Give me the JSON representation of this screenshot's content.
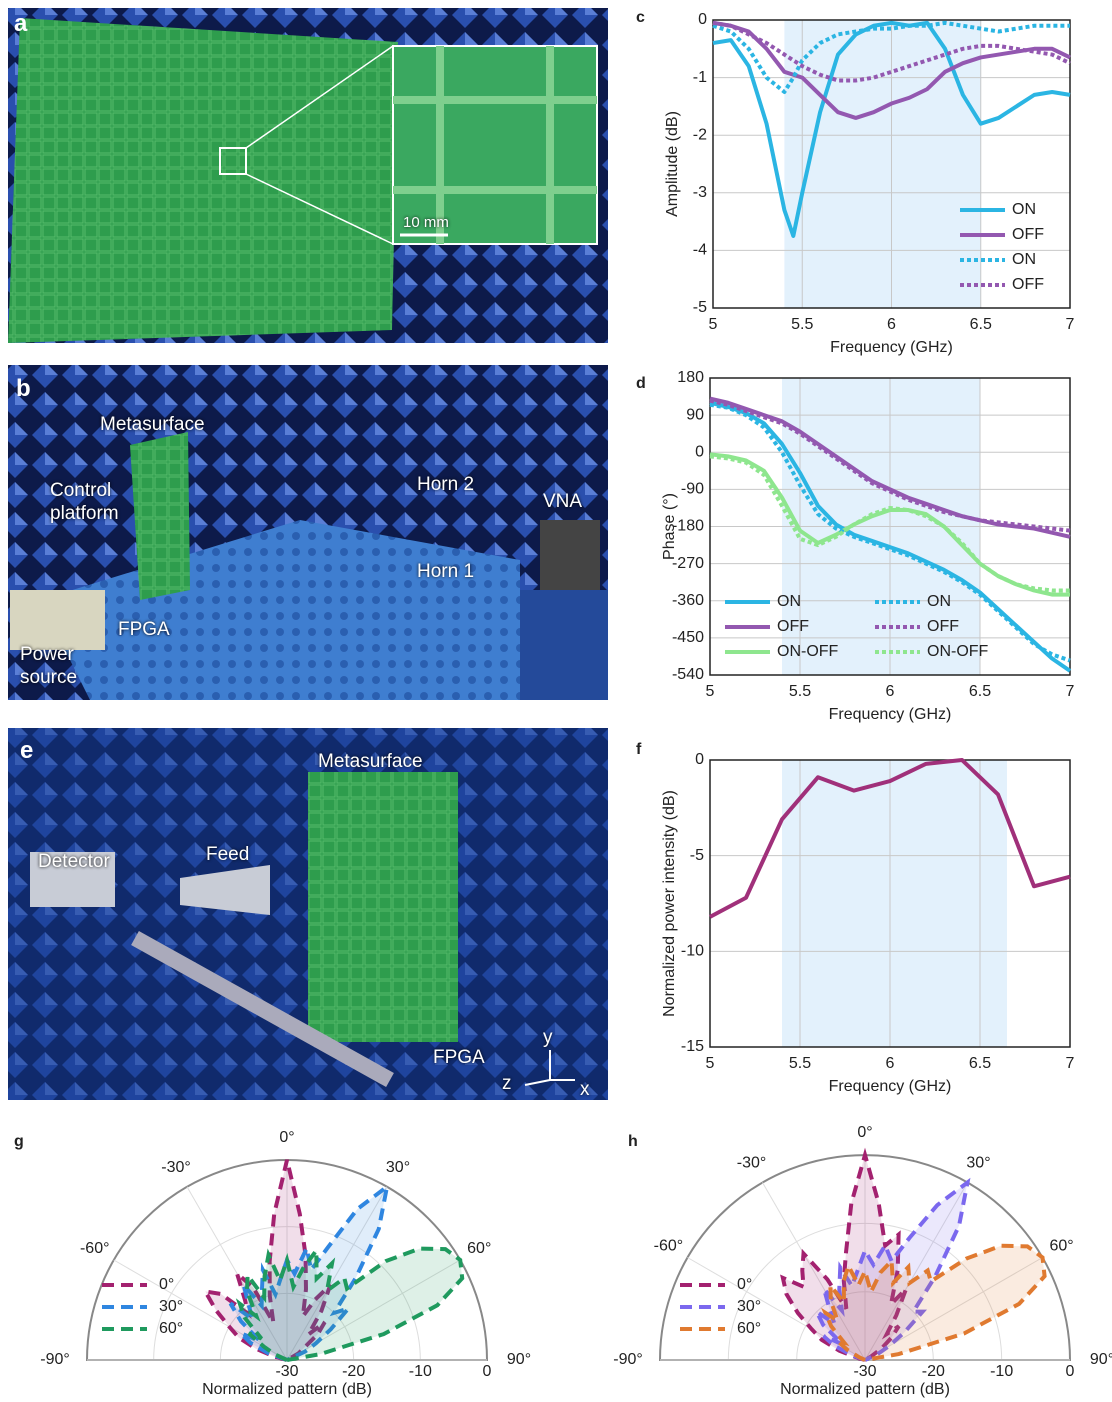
{
  "panels": {
    "a": {
      "label": "a",
      "scale_bar": "10 mm"
    },
    "b": {
      "label": "b",
      "annotations": [
        "Metasurface",
        "Control platform",
        "Horn 2",
        "VNA",
        "Horn 1",
        "FPGA",
        "Power source"
      ]
    },
    "e": {
      "label": "e",
      "annotations": [
        "Metasurface",
        "Detector",
        "Feed",
        "FPGA",
        "y",
        "z",
        "x"
      ]
    }
  },
  "chart_data": [
    {
      "type": "line",
      "panel": "c",
      "xlabel": "Frequency (GHz)",
      "ylabel": "Amplitude (dB)",
      "x": [
        5,
        5.1,
        5.2,
        5.3,
        5.4,
        5.45,
        5.5,
        5.6,
        5.7,
        5.8,
        5.9,
        6,
        6.1,
        6.2,
        6.3,
        6.4,
        6.5,
        6.6,
        6.7,
        6.8,
        6.9,
        7
      ],
      "xlim": [
        5,
        7
      ],
      "xticks": [
        5,
        5.5,
        6,
        6.5,
        7
      ],
      "ylim": [
        -5,
        0
      ],
      "yticks": [
        -5,
        -4,
        -3,
        -2,
        -1,
        0
      ],
      "grid": true,
      "shaded_region": [
        5.4,
        6.5
      ],
      "legend": "lower right",
      "legend_columns": 1,
      "series": [
        {
          "name": "ON",
          "color": "#2bb5e3",
          "dash": "solid",
          "values": [
            -0.4,
            -0.35,
            -0.8,
            -1.8,
            -3.3,
            -3.75,
            -3.0,
            -1.6,
            -0.6,
            -0.25,
            -0.1,
            -0.05,
            -0.1,
            -0.05,
            -0.5,
            -1.3,
            -1.8,
            -1.7,
            -1.5,
            -1.3,
            -1.25,
            -1.3
          ]
        },
        {
          "name": "OFF",
          "color": "#9358b0",
          "dash": "solid",
          "values": [
            -0.05,
            -0.1,
            -0.2,
            -0.5,
            -0.9,
            -0.95,
            -1.0,
            -1.3,
            -1.6,
            -1.7,
            -1.6,
            -1.45,
            -1.35,
            -1.2,
            -0.9,
            -0.75,
            -0.65,
            -0.6,
            -0.55,
            -0.5,
            -0.5,
            -0.65
          ]
        },
        {
          "name": "ON",
          "color": "#2bb5e3",
          "dash": "dotted",
          "values": [
            -0.1,
            -0.2,
            -0.5,
            -1.0,
            -1.25,
            -1.0,
            -0.7,
            -0.4,
            -0.25,
            -0.2,
            -0.15,
            -0.15,
            -0.1,
            -0.1,
            -0.05,
            -0.1,
            -0.15,
            -0.2,
            -0.15,
            -0.1,
            -0.1,
            -0.1
          ]
        },
        {
          "name": "OFF",
          "color": "#9358b0",
          "dash": "dotted",
          "values": [
            -0.05,
            -0.1,
            -0.25,
            -0.4,
            -0.6,
            -0.7,
            -0.8,
            -0.95,
            -1.05,
            -1.05,
            -1.0,
            -0.9,
            -0.8,
            -0.7,
            -0.6,
            -0.5,
            -0.45,
            -0.45,
            -0.5,
            -0.55,
            -0.6,
            -0.75
          ]
        }
      ]
    },
    {
      "type": "line",
      "panel": "d",
      "xlabel": "Frequency (GHz)",
      "ylabel": "Phase (°)",
      "x": [
        5,
        5.1,
        5.2,
        5.3,
        5.4,
        5.5,
        5.6,
        5.7,
        5.8,
        5.9,
        6,
        6.1,
        6.2,
        6.3,
        6.4,
        6.5,
        6.6,
        6.7,
        6.8,
        6.9,
        7
      ],
      "xlim": [
        5,
        7
      ],
      "xticks": [
        5,
        5.5,
        6,
        6.5,
        7
      ],
      "ylim": [
        -540,
        180
      ],
      "yticks": [
        -540,
        -450,
        -360,
        -270,
        -180,
        -90,
        0,
        90,
        180
      ],
      "grid": true,
      "shaded_region": [
        5.4,
        6.5
      ],
      "legend": "lower left",
      "legend_columns": 2,
      "series": [
        {
          "name": "ON",
          "color": "#2bb5e3",
          "dash": "solid",
          "values": [
            120,
            110,
            95,
            70,
            20,
            -50,
            -130,
            -175,
            -200,
            -215,
            -230,
            -245,
            -265,
            -285,
            -310,
            -340,
            -380,
            -420,
            -460,
            -500,
            -530
          ]
        },
        {
          "name": "OFF",
          "color": "#9358b0",
          "dash": "solid",
          "values": [
            130,
            120,
            105,
            90,
            75,
            50,
            20,
            -10,
            -40,
            -70,
            -90,
            -110,
            -125,
            -140,
            -155,
            -165,
            -175,
            -180,
            -185,
            -195,
            -205
          ]
        },
        {
          "name": "ON-OFF",
          "color": "#8ee68e",
          "dash": "solid",
          "values": [
            -5,
            -10,
            -20,
            -45,
            -110,
            -190,
            -220,
            -200,
            -175,
            -155,
            -140,
            -140,
            -150,
            -180,
            -225,
            -270,
            -300,
            -320,
            -335,
            -345,
            -345
          ]
        },
        {
          "name": "ON",
          "color": "#2bb5e3",
          "dash": "dotted",
          "values": [
            115,
            108,
            90,
            60,
            0,
            -80,
            -150,
            -185,
            -205,
            -220,
            -235,
            -250,
            -270,
            -290,
            -315,
            -345,
            -385,
            -425,
            -465,
            -490,
            -505
          ]
        },
        {
          "name": "OFF",
          "color": "#9358b0",
          "dash": "dotted",
          "values": [
            125,
            115,
            100,
            85,
            70,
            45,
            15,
            -15,
            -45,
            -75,
            -95,
            -115,
            -130,
            -145,
            -155,
            -165,
            -170,
            -175,
            -180,
            -185,
            -190
          ]
        },
        {
          "name": "ON-OFF",
          "color": "#8ee68e",
          "dash": "dotted",
          "values": [
            -10,
            -15,
            -25,
            -55,
            -130,
            -210,
            -225,
            -205,
            -175,
            -150,
            -135,
            -140,
            -155,
            -180,
            -220,
            -270,
            -300,
            -320,
            -330,
            -335,
            -335
          ]
        }
      ]
    },
    {
      "type": "line",
      "panel": "f",
      "xlabel": "Frequency (GHz)",
      "ylabel": "Normalized power intensity (dB)",
      "x": [
        5,
        5.2,
        5.4,
        5.6,
        5.8,
        6,
        6.2,
        6.4,
        6.6,
        6.8,
        7
      ],
      "xlim": [
        5,
        7
      ],
      "xticks": [
        5,
        5.5,
        6,
        6.5,
        7
      ],
      "ylim": [
        -15,
        0
      ],
      "yticks": [
        -15,
        -10,
        -5,
        0
      ],
      "grid": true,
      "shaded_region": [
        5.4,
        6.65
      ],
      "color": "#a0307a",
      "values": [
        -8.2,
        -7.2,
        -3.1,
        -0.9,
        -1.6,
        -1.1,
        -0.2,
        0,
        -1.8,
        -6.6,
        -6.1
      ]
    },
    {
      "type": "polar",
      "panel": "g",
      "rlabel": "Normalized pattern (dB)",
      "rlim": [
        -30,
        0
      ],
      "rticks": [
        -30,
        -20,
        -10,
        0
      ],
      "thetaticks": [
        {
          "value": -90,
          "label": "-90°"
        },
        {
          "value": -60,
          "label": "-60°"
        },
        {
          "value": -30,
          "label": "-30°"
        },
        {
          "value": 0,
          "label": "0°"
        },
        {
          "value": 30,
          "label": "30°"
        },
        {
          "value": 60,
          "label": "60°"
        },
        {
          "value": 90,
          "label": "90°"
        }
      ],
      "theta": [
        -90,
        -85,
        -80,
        -75,
        -70,
        -65,
        -60,
        -55,
        -50,
        -45,
        -40,
        -35,
        -30,
        -25,
        -20,
        -15,
        -10,
        -5,
        0,
        5,
        10,
        15,
        20,
        25,
        30,
        35,
        40,
        45,
        50,
        55,
        60,
        65,
        70,
        75,
        80,
        85,
        90
      ],
      "series": [
        {
          "name": "0°",
          "color": "#a3216f",
          "values": [
            -30,
            -30,
            -30,
            -28,
            -25,
            -22,
            -20,
            -17,
            -14,
            -16,
            -21,
            -19,
            -15,
            -18,
            -24,
            -20,
            -15,
            -8,
            0,
            -8,
            -14,
            -19,
            -23,
            -20,
            -17,
            -21,
            -25,
            -22,
            -24,
            -27,
            -28,
            -30,
            -30,
            -30,
            -30,
            -30,
            -30
          ]
        },
        {
          "name": "30°",
          "color": "#2f86e0",
          "values": [
            -30,
            -30,
            -30,
            -30,
            -27,
            -24,
            -22,
            -25,
            -21,
            -18,
            -22,
            -20,
            -17,
            -21,
            -19,
            -16,
            -20,
            -18,
            -15,
            -17,
            -13,
            -16,
            -12,
            -5,
            0,
            -6,
            -14,
            -20,
            -18,
            -22,
            -25,
            -27,
            -30,
            -30,
            -30,
            -30,
            -30
          ]
        },
        {
          "name": "60°",
          "color": "#1f9a5e",
          "values": [
            -30,
            -30,
            -30,
            -30,
            -30,
            -28,
            -26,
            -23,
            -25,
            -21,
            -19,
            -22,
            -18,
            -16,
            -20,
            -17,
            -14,
            -18,
            -15,
            -19,
            -16,
            -13,
            -17,
            -14,
            -18,
            -15,
            -16,
            -9,
            -4,
            -1,
            0,
            -1,
            -6,
            -15,
            -25,
            -30,
            -30
          ]
        }
      ]
    },
    {
      "type": "polar",
      "panel": "h",
      "rlabel": "Normalized pattern (dB)",
      "rlim": [
        -30,
        0
      ],
      "rticks": [
        -30,
        -20,
        -10,
        0
      ],
      "thetaticks": [
        {
          "value": -90,
          "label": "-90°"
        },
        {
          "value": -60,
          "label": "-60°"
        },
        {
          "value": -30,
          "label": "-30°"
        },
        {
          "value": 0,
          "label": "0°"
        },
        {
          "value": 30,
          "label": "30°"
        },
        {
          "value": 60,
          "label": "60°"
        },
        {
          "value": 90,
          "label": "90°"
        }
      ],
      "theta": [
        -90,
        -85,
        -80,
        -75,
        -70,
        -65,
        -60,
        -55,
        -50,
        -45,
        -40,
        -35,
        -30,
        -25,
        -20,
        -15,
        -10,
        -5,
        0,
        5,
        10,
        15,
        20,
        25,
        30,
        35,
        40,
        45,
        50,
        55,
        60,
        65,
        70,
        75,
        80,
        85,
        90
      ],
      "series": [
        {
          "name": "0°",
          "color": "#a3216f",
          "values": [
            -30,
            -30,
            -30,
            -29,
            -26,
            -23,
            -21,
            -18,
            -15,
            -13,
            -16,
            -14,
            -12,
            -17,
            -22,
            -18,
            -14,
            -7,
            0,
            -7,
            -13,
            -11,
            -16,
            -21,
            -18,
            -22,
            -25,
            -23,
            -25,
            -27,
            -29,
            -30,
            -30,
            -30,
            -30,
            -30,
            -30
          ]
        },
        {
          "name": "30°",
          "color": "#7b68ee",
          "values": [
            -30,
            -30,
            -30,
            -30,
            -28,
            -25,
            -23,
            -26,
            -22,
            -20,
            -23,
            -21,
            -18,
            -22,
            -19,
            -16,
            -19,
            -17,
            -14,
            -16,
            -13,
            -15,
            -11,
            -5,
            0,
            -6,
            -14,
            -20,
            -19,
            -23,
            -26,
            -28,
            -30,
            -30,
            -30,
            -30,
            -30
          ]
        },
        {
          "name": "60°",
          "color": "#e07a30",
          "values": [
            -30,
            -30,
            -30,
            -30,
            -30,
            -29,
            -27,
            -25,
            -26,
            -23,
            -21,
            -23,
            -20,
            -18,
            -21,
            -18,
            -16,
            -19,
            -17,
            -20,
            -17,
            -15,
            -18,
            -15,
            -17,
            -14,
            -15,
            -9,
            -4,
            -1,
            0,
            -1,
            -6,
            -15,
            -25,
            -30,
            -30
          ]
        }
      ]
    }
  ]
}
